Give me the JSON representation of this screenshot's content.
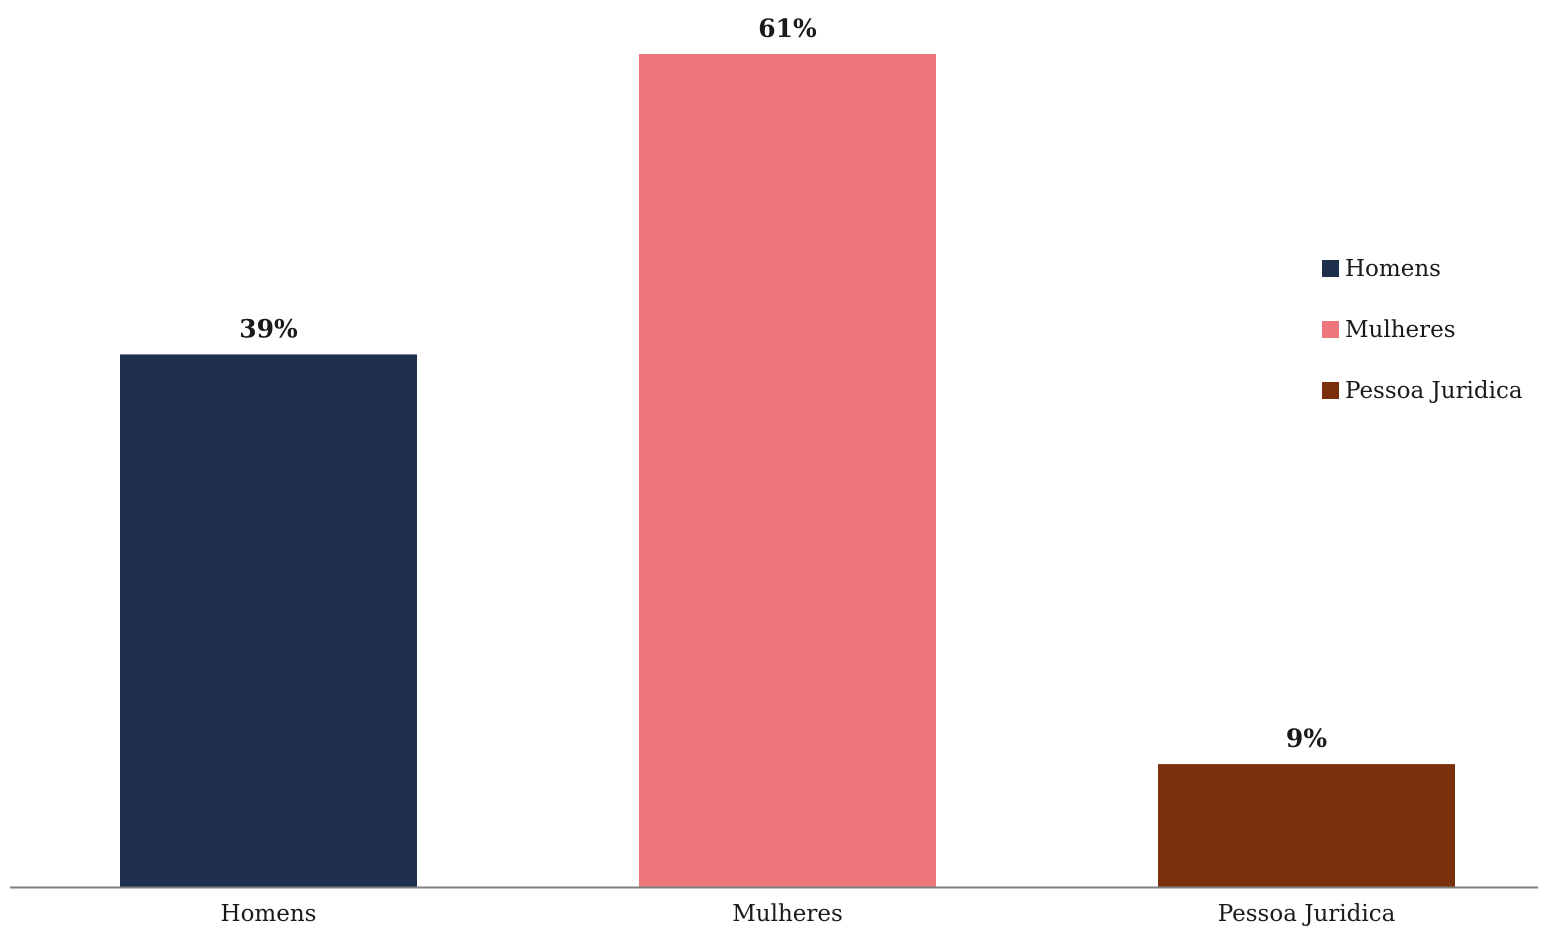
{
  "chart_data": {
    "type": "bar",
    "categories": [
      "Homens",
      "Mulheres",
      "Pessoa Juridica"
    ],
    "values": [
      39,
      61,
      9
    ],
    "value_labels": [
      "39%",
      "61%",
      "9%"
    ],
    "unit": "%",
    "colors": [
      "#1f304d",
      "#ec767c",
      "#7a300c"
    ],
    "legend": {
      "placement": "right",
      "entries": [
        "Homens",
        "Mulheres",
        "Pessoa Juridica"
      ]
    },
    "ylim": [
      0,
      61
    ],
    "grid": false,
    "axis_color": "#7f7f7f"
  }
}
